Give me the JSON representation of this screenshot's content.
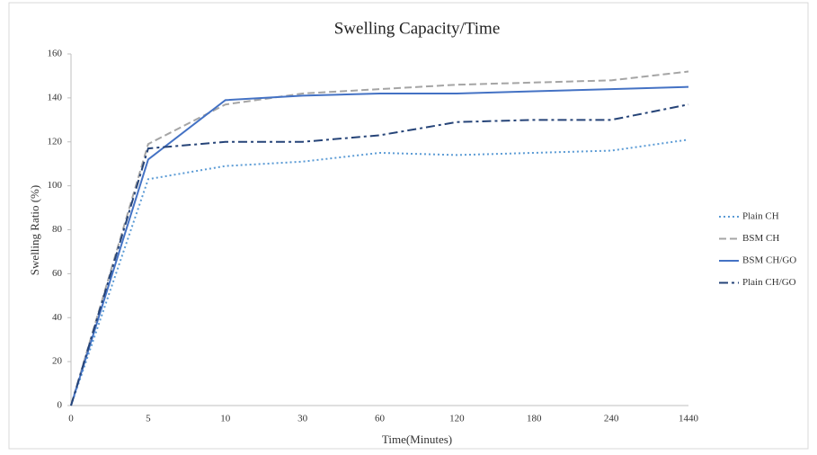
{
  "chart_data": {
    "type": "line",
    "title": "Swelling Capacity/Time",
    "x_label": "Time(Minutes)",
    "y_label": "Swelling Ratio (%)",
    "categories": [
      "0",
      "5",
      "10",
      "30",
      "60",
      "120",
      "180",
      "240",
      "1440"
    ],
    "series": [
      {
        "name": "Plain CH",
        "color": "#5b9bd5",
        "dash": "dotted",
        "values": [
          0,
          103,
          109,
          111,
          115,
          114,
          115,
          116,
          121
        ]
      },
      {
        "name": "BSM CH",
        "color": "#a5a5a5",
        "dash": "dashed",
        "values": [
          0,
          119,
          137,
          142,
          144,
          146,
          147,
          148,
          152
        ]
      },
      {
        "name": "BSM CH/GO",
        "color": "#4472c4",
        "dash": "solid",
        "values": [
          0,
          112,
          139,
          141,
          142,
          142,
          143,
          144,
          145
        ]
      },
      {
        "name": "Plain CH/GO",
        "color": "#264478",
        "dash": "dashdot",
        "values": [
          0,
          117,
          120,
          120,
          123,
          129,
          130,
          130,
          137
        ]
      }
    ],
    "ylim": [
      0,
      160
    ],
    "yticks": [
      0,
      20,
      40,
      60,
      80,
      100,
      120,
      140,
      160
    ],
    "grid": false,
    "legend": "right"
  }
}
